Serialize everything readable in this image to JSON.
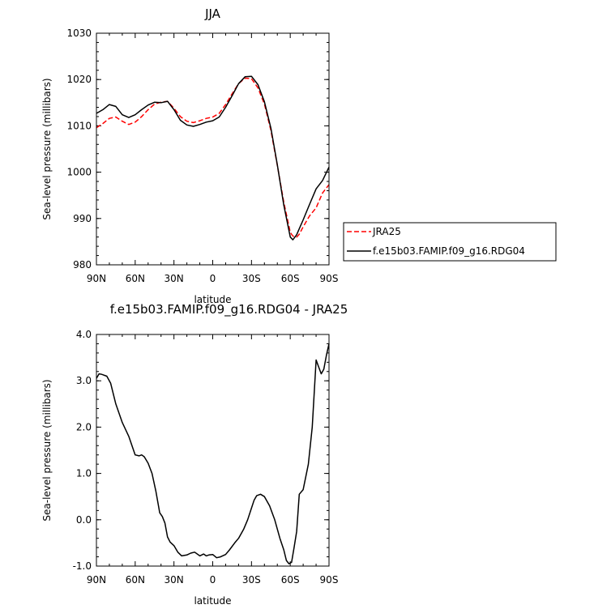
{
  "chart_data": [
    {
      "type": "line",
      "title": "JJA",
      "xlabel": "latitude",
      "ylabel": "Sea-level pressure (millibars)",
      "xlim": [
        90,
        -90
      ],
      "ylim": [
        980,
        1030
      ],
      "x_ticks": [
        90,
        60,
        30,
        0,
        -30,
        -60,
        -90
      ],
      "x_tick_labels": [
        "90N",
        "60N",
        "30N",
        "0",
        "30S",
        "60S",
        "90S"
      ],
      "y_ticks": [
        980,
        990,
        1000,
        1010,
        1020,
        1030
      ],
      "y_tick_labels": [
        "980",
        "990",
        "1000",
        "1010",
        "1020",
        "1030"
      ],
      "grid": false,
      "legend_position": "right",
      "series": [
        {
          "name": "JRA25",
          "color": "#ff0000",
          "dash": "dashed",
          "x": [
            90,
            85,
            80,
            75,
            70,
            65,
            60,
            55,
            50,
            45,
            40,
            35,
            30,
            25,
            20,
            15,
            10,
            5,
            0,
            -5,
            -10,
            -15,
            -20,
            -25,
            -30,
            -35,
            -40,
            -45,
            -50,
            -55,
            -60,
            -62,
            -65,
            -67,
            -70,
            -75,
            -80,
            -85,
            -90
          ],
          "y": [
            1009.6,
            1010.5,
            1011.6,
            1011.9,
            1011.0,
            1010.3,
            1010.8,
            1012.0,
            1013.5,
            1014.7,
            1015.1,
            1015.3,
            1013.8,
            1012.0,
            1011.0,
            1010.7,
            1011.1,
            1011.6,
            1011.9,
            1012.7,
            1014.6,
            1016.9,
            1019.1,
            1020.3,
            1020.2,
            1018.2,
            1014.7,
            1009.0,
            1001.5,
            993.5,
            987.0,
            986.2,
            986.0,
            986.6,
            988.2,
            990.6,
            992.3,
            995.5,
            997.3
          ]
        },
        {
          "name": "f.e15b03.FAMIP.f09_g16.RDG04",
          "color": "#000000",
          "dash": "solid",
          "x": [
            90,
            85,
            80,
            75,
            70,
            65,
            60,
            55,
            50,
            45,
            40,
            35,
            30,
            25,
            20,
            15,
            10,
            5,
            0,
            -5,
            -10,
            -15,
            -20,
            -25,
            -30,
            -35,
            -40,
            -45,
            -50,
            -55,
            -60,
            -62,
            -65,
            -67,
            -70,
            -75,
            -80,
            -85,
            -90
          ],
          "y": [
            1012.7,
            1013.5,
            1014.6,
            1014.2,
            1012.4,
            1011.8,
            1012.4,
            1013.5,
            1014.5,
            1015.1,
            1015.0,
            1015.3,
            1013.5,
            1011.2,
            1010.2,
            1009.9,
            1010.3,
            1010.8,
            1011.1,
            1011.9,
            1014.0,
            1016.5,
            1019.1,
            1020.6,
            1020.7,
            1018.9,
            1015.2,
            1009.5,
            1001.6,
            992.9,
            986.0,
            985.4,
            986.5,
            987.8,
            989.7,
            993.1,
            996.4,
            998.2,
            1001.1
          ]
        }
      ]
    },
    {
      "type": "line",
      "title": "f.e15b03.FAMIP.f09_g16.RDG04 - JRA25",
      "xlabel": "latitude",
      "ylabel": "Sea-level pressure (millibars)",
      "xlim": [
        90,
        -90
      ],
      "ylim": [
        -1.0,
        4.0
      ],
      "x_ticks": [
        90,
        60,
        30,
        0,
        -30,
        -60,
        -90
      ],
      "x_tick_labels": [
        "90N",
        "60N",
        "30N",
        "0",
        "30S",
        "60S",
        "90S"
      ],
      "y_ticks": [
        -1.0,
        0.0,
        1.0,
        2.0,
        3.0,
        4.0
      ],
      "y_tick_labels": [
        "-1.0",
        "0.0",
        "1.0",
        "2.0",
        "3.0",
        "4.0"
      ],
      "grid": false,
      "series": [
        {
          "color": "#000000",
          "dash": "solid",
          "x": [
            90,
            88,
            86,
            82,
            79,
            75,
            70,
            65,
            60,
            57,
            55,
            53,
            50,
            47,
            44,
            41,
            39,
            37,
            35,
            33,
            30,
            27,
            24,
            20,
            17,
            14,
            10,
            7,
            5,
            3,
            0,
            -3,
            -6,
            -10,
            -13,
            -17,
            -20,
            -24,
            -27,
            -30,
            -32,
            -34,
            -37,
            -40,
            -44,
            -48,
            -52,
            -55,
            -57,
            -59,
            -61,
            -63,
            -65,
            -67,
            -70,
            -74,
            -77,
            -80,
            -82,
            -84,
            -86,
            -88,
            -90
          ],
          "y": [
            3.05,
            3.15,
            3.14,
            3.1,
            2.95,
            2.5,
            2.1,
            1.8,
            1.4,
            1.38,
            1.4,
            1.36,
            1.22,
            1.0,
            0.62,
            0.15,
            0.07,
            -0.07,
            -0.37,
            -0.48,
            -0.56,
            -0.7,
            -0.78,
            -0.76,
            -0.72,
            -0.7,
            -0.78,
            -0.74,
            -0.78,
            -0.76,
            -0.75,
            -0.82,
            -0.8,
            -0.75,
            -0.65,
            -0.5,
            -0.4,
            -0.2,
            0.0,
            0.25,
            0.42,
            0.52,
            0.55,
            0.5,
            0.3,
            0.0,
            -0.4,
            -0.65,
            -0.88,
            -0.95,
            -0.92,
            -0.6,
            -0.25,
            0.55,
            0.65,
            1.2,
            2.0,
            3.45,
            3.3,
            3.15,
            3.25,
            3.55,
            3.8
          ]
        }
      ]
    }
  ]
}
